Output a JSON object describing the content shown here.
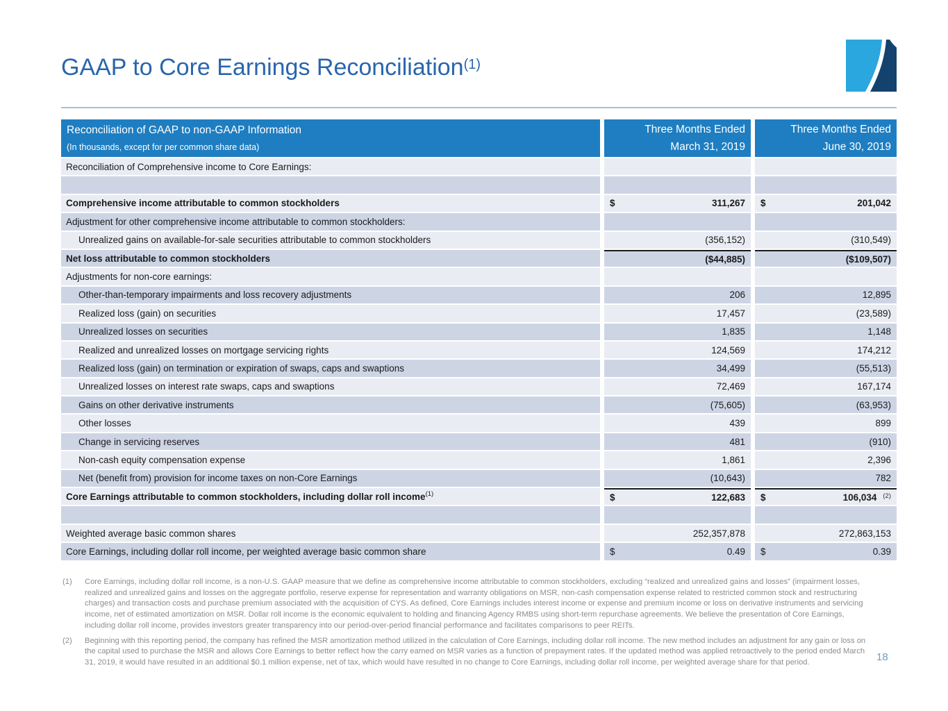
{
  "slide": {
    "title": "GAAP to Core Earnings Reconciliation",
    "title_sup": "(1)",
    "page_number": "18"
  },
  "colors": {
    "header_blue": "#1e7ec1",
    "title_blue": "#2a65ad",
    "row_light": "#e9ecf3",
    "row_dark": "#cdd5e5",
    "rule_black": "#1a1a1a",
    "divider_light_blue": "#9dc3db",
    "footnote_gray": "#8c8c8c",
    "page_number_blue": "#64a0cb",
    "logo_light_blue": "#2ba7df",
    "logo_navy": "#13426f"
  },
  "logo": {
    "name": "two-tone-swoosh-logo"
  },
  "table": {
    "header": {
      "label_line1": "Reconciliation of GAAP to non-GAAP Information",
      "label_line2": "(In thousands, except for per common share data)",
      "col1_line1": "Three Months Ended",
      "col1_line2": "March 31, 2019",
      "col2_line1": "Three Months Ended",
      "col2_line2": "June 30, 2019"
    },
    "rows": [
      {
        "label": "Reconciliation of Comprehensive income to Core Earnings:",
        "v1": "",
        "v2": ""
      },
      {
        "label": "",
        "v1": "",
        "v2": ""
      },
      {
        "label": "Comprehensive income attributable to common stockholders",
        "bold": true,
        "d1": "$",
        "v1": "311,267",
        "d2": "$",
        "v2": "201,042"
      },
      {
        "label": "Adjustment for other comprehensive income attributable to common stockholders:",
        "v1": "",
        "v2": ""
      },
      {
        "label": "Unrealized gains on available-for-sale securities attributable to common stockholders",
        "indent": true,
        "v1": "(356,152)",
        "v2": "(310,549)"
      },
      {
        "label": "Net loss attributable to common stockholders",
        "bold": true,
        "rule": true,
        "v1": "($44,885)",
        "v2": "($109,507)"
      },
      {
        "label": "Adjustments for non-core earnings:",
        "v1": "",
        "v2": ""
      },
      {
        "label": "Other-than-temporary impairments and loss recovery adjustments",
        "indent": true,
        "v1": "206",
        "v2": "12,895"
      },
      {
        "label": "Realized loss (gain) on securities",
        "indent": true,
        "v1": "17,457",
        "v2": "(23,589)"
      },
      {
        "label": "Unrealized losses on securities",
        "indent": true,
        "v1": "1,835",
        "v2": "1,148"
      },
      {
        "label": "Realized and unrealized losses on mortgage servicing rights",
        "indent": true,
        "v1": "124,569",
        "v2": "174,212"
      },
      {
        "label": "Realized loss (gain) on termination or expiration of swaps, caps and swaptions",
        "indent": true,
        "v1": "34,499",
        "v2": "(55,513)"
      },
      {
        "label": "Unrealized losses on interest rate swaps, caps and swaptions",
        "indent": true,
        "v1": "72,469",
        "v2": "167,174"
      },
      {
        "label": "Gains on other derivative instruments",
        "indent": true,
        "v1": "(75,605)",
        "v2": "(63,953)"
      },
      {
        "label": "Other losses",
        "indent": true,
        "v1": "439",
        "v2": "899"
      },
      {
        "label": "Change in servicing reserves",
        "indent": true,
        "v1": "481",
        "v2": "(910)"
      },
      {
        "label": "Non-cash equity compensation expense",
        "indent": true,
        "v1": "1,861",
        "v2": "2,396"
      },
      {
        "label": "Net (benefit from) provision for income taxes on non-Core Earnings",
        "indent": true,
        "v1": "(10,643)",
        "v2": "782"
      },
      {
        "label": "Core Earnings attributable to common stockholders, including dollar roll income",
        "label_sup": "(1)",
        "bold": true,
        "rule": true,
        "d1": "$",
        "v1": "122,683",
        "d2": "$",
        "v2": "106,034",
        "v2_sup": "(2)"
      },
      {
        "label": "",
        "v1": "",
        "v2": ""
      },
      {
        "label": "Weighted average basic common shares",
        "v1": "252,357,878",
        "v2": "272,863,153"
      },
      {
        "label": "Core Earnings, including dollar roll income, per weighted average basic common share",
        "d1": "$",
        "v1": "0.49",
        "d2": "$",
        "v2": "0.39"
      }
    ]
  },
  "footnotes": [
    {
      "num": "(1)",
      "text": "Core Earnings, including dollar roll income, is a non-U.S. GAAP measure that we define as comprehensive income attributable to common stockholders, excluding “realized and unrealized gains and losses” (impairment losses, realized and unrealized gains and losses on the aggregate portfolio, reserve expense for representation and warranty obligations on MSR,  non-cash compensation expense related to restricted common stock and restructuring charges) and transaction costs and purchase premium associated with the acquisition of CYS. As defined, Core Earnings includes interest income or expense and premium income or loss on derivative instruments and servicing income, net of estimated amortization on MSR. Dollar roll income is the economic equivalent to holding and financing Agency RMBS using short-term repurchase agreements. We believe the presentation of Core Earnings, including dollar roll income, provides investors greater transparency into our period-over-period financial performance and facilitates comparisons to peer REITs."
    },
    {
      "num": "(2)",
      "text": "Beginning with this reporting period, the company has refined the MSR amortization method utilized in the calculation of Core Earnings, including dollar roll income. The new method includes an adjustment for any gain or loss on the capital used to purchase the MSR and allows Core Earnings to better reflect how the carry earned on MSR varies as a function of prepayment rates. If the updated method was applied retroactively to the period ended March 31, 2019, it would have resulted in an additional $0.1 million expense, net of tax, which would have resulted in no change to Core Earnings, including dollar roll income, per weighted average share for that period."
    }
  ]
}
